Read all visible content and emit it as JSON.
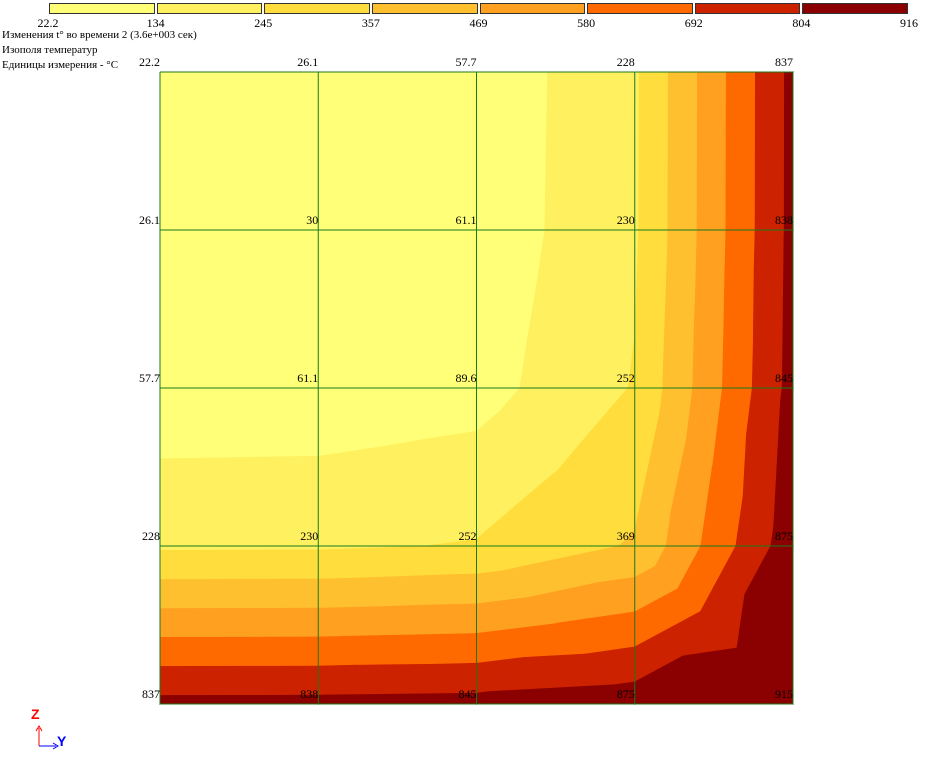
{
  "header": {
    "line1": "Изменения t° во времени 2 (3.6е+003 сек)",
    "line2": "Изополя температур",
    "line3": "Единицы измерения - °С"
  },
  "legend": {
    "ticks": [
      "22.2",
      "134",
      "245",
      "357",
      "469",
      "580",
      "692",
      "804",
      "916"
    ],
    "colors": [
      "#ffff78",
      "#fff060",
      "#ffdd3c",
      "#ffc030",
      "#ffa020",
      "#ff6a00",
      "#cc2200",
      "#8b0000"
    ]
  },
  "axes": {
    "vertical": "Z",
    "horizontal": "Y"
  },
  "chart_data": {
    "type": "heatmap",
    "subtype": "temperature-isofield",
    "unit": "°С",
    "levels": [
      22.2,
      134,
      245,
      357,
      469,
      580,
      692,
      804,
      916
    ],
    "grid": {
      "rows": 5,
      "cols": 5
    },
    "node_values": [
      [
        "22.2",
        "26.1",
        "57.7",
        "228",
        "837"
      ],
      [
        "26.1",
        "30",
        "61.1",
        "230",
        "838"
      ],
      [
        "57.7",
        "61.1",
        "89.6",
        "252",
        "845"
      ],
      [
        "228",
        "230",
        "252",
        "369",
        "875"
      ],
      [
        "837",
        "838",
        "845",
        "875",
        "915"
      ]
    ]
  }
}
